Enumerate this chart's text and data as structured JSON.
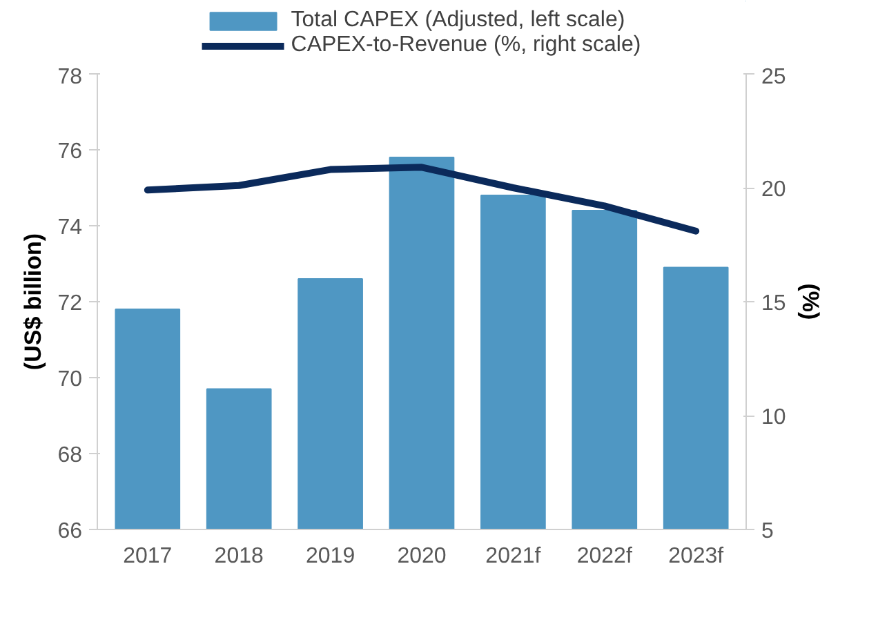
{
  "chart_data": {
    "type": "bar",
    "ylabel": "(US$ billion)",
    "y2label": "(%)",
    "categories": [
      "2017",
      "2018",
      "2019",
      "2020",
      "2021f",
      "2022f",
      "2023f"
    ],
    "series": [
      {
        "name": "Total CAPEX (Adjusted, left scale)",
        "color": "#4f97c3",
        "values": [
          71.8,
          69.7,
          72.6,
          75.8,
          74.8,
          74.4,
          72.9
        ]
      },
      {
        "name": "CAPEX-to-Revenue (%, right scale)",
        "type": "line",
        "axis": "y2",
        "color": "#0b2a5b",
        "values": [
          19.9,
          20.1,
          20.8,
          20.9,
          20.0,
          19.2,
          18.1
        ]
      }
    ],
    "ylim": [
      66,
      78
    ],
    "yticks": [
      66,
      68,
      70,
      72,
      74,
      76,
      78
    ],
    "y2lim": [
      5,
      25
    ],
    "y2ticks": [
      5,
      10,
      15,
      20,
      25
    ],
    "grid": false,
    "legend": "top",
    "marker": "none",
    "line_style": "solid"
  }
}
